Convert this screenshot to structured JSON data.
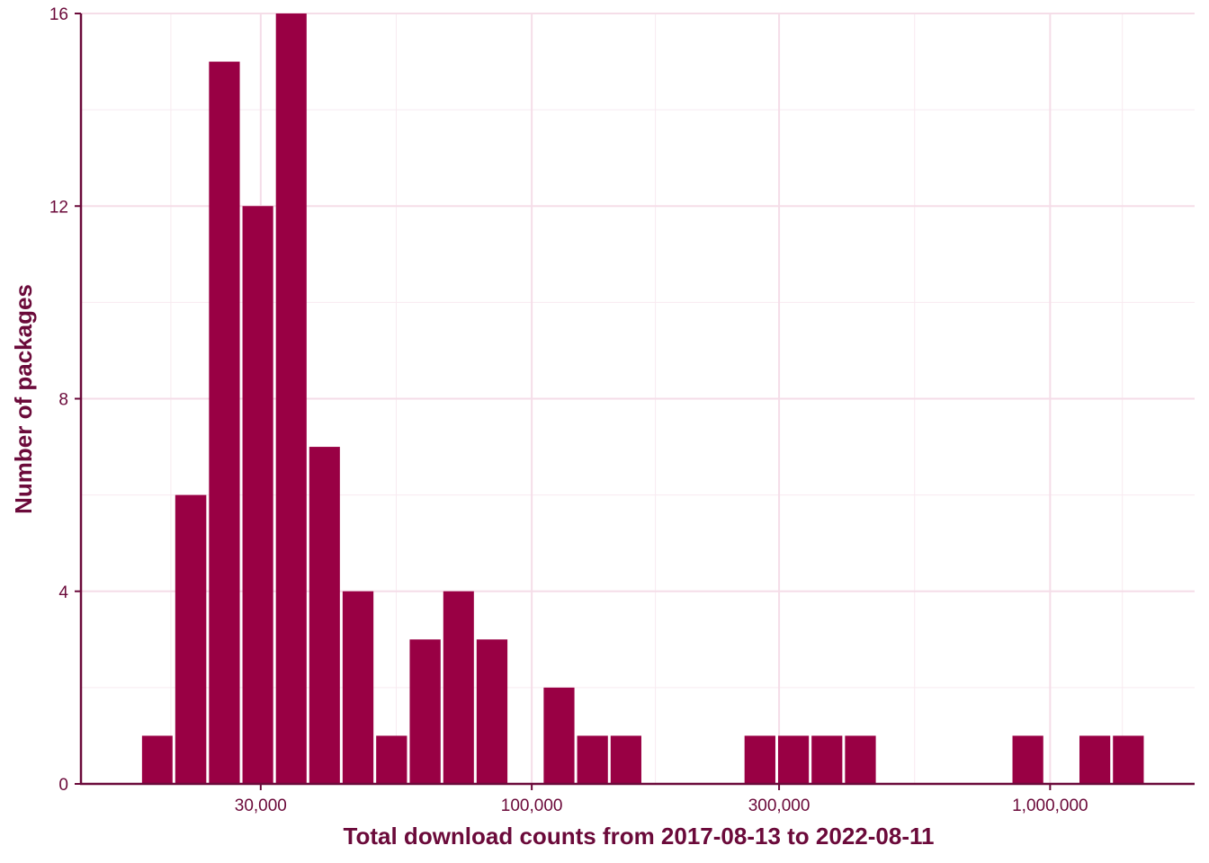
{
  "chart_data": {
    "type": "bar",
    "subtype": "histogram",
    "x_scale": "log10",
    "xlabel": "Total download counts from 2017-08-13 to 2022-08-11",
    "ylabel": "Number of packages",
    "xlim": [
      13500,
      1900000
    ],
    "ylim": [
      0,
      16
    ],
    "x_ticks": [
      {
        "value": 30000,
        "label": "30,000"
      },
      {
        "value": 100000,
        "label": "100,000"
      },
      {
        "value": 300000,
        "label": "300,000"
      },
      {
        "value": 1000000,
        "label": "1,000,000"
      }
    ],
    "y_ticks": [
      {
        "value": 0,
        "label": "0"
      },
      {
        "value": 4,
        "label": "4"
      },
      {
        "value": 8,
        "label": "8"
      },
      {
        "value": 12,
        "label": "12"
      },
      {
        "value": 16,
        "label": "16"
      }
    ],
    "bins": [
      {
        "x0": 17600,
        "x1": 20400,
        "count": 1
      },
      {
        "x0": 20400,
        "x1": 23700,
        "count": 6
      },
      {
        "x0": 23700,
        "x1": 27500,
        "count": 15
      },
      {
        "x0": 27500,
        "x1": 31900,
        "count": 12
      },
      {
        "x0": 31900,
        "x1": 37000,
        "count": 16
      },
      {
        "x0": 37000,
        "x1": 42900,
        "count": 7
      },
      {
        "x0": 42900,
        "x1": 49800,
        "count": 4
      },
      {
        "x0": 49800,
        "x1": 57800,
        "count": 1
      },
      {
        "x0": 57800,
        "x1": 67100,
        "count": 3
      },
      {
        "x0": 67100,
        "x1": 77800,
        "count": 4
      },
      {
        "x0": 77800,
        "x1": 90300,
        "count": 3
      },
      {
        "x0": 90300,
        "x1": 104800,
        "count": 0
      },
      {
        "x0": 104800,
        "x1": 121600,
        "count": 2
      },
      {
        "x0": 121600,
        "x1": 141100,
        "count": 1
      },
      {
        "x0": 141100,
        "x1": 163700,
        "count": 1
      },
      {
        "x0": 163700,
        "x1": 190000,
        "count": 0
      },
      {
        "x0": 190000,
        "x1": 220400,
        "count": 0
      },
      {
        "x0": 220400,
        "x1": 255800,
        "count": 0
      },
      {
        "x0": 255800,
        "x1": 296900,
        "count": 1
      },
      {
        "x0": 296900,
        "x1": 344500,
        "count": 1
      },
      {
        "x0": 344500,
        "x1": 399700,
        "count": 1
      },
      {
        "x0": 399700,
        "x1": 463800,
        "count": 1
      },
      {
        "x0": 463800,
        "x1": 538200,
        "count": 0
      },
      {
        "x0": 538200,
        "x1": 624500,
        "count": 0
      },
      {
        "x0": 624500,
        "x1": 724700,
        "count": 0
      },
      {
        "x0": 724700,
        "x1": 841000,
        "count": 0
      },
      {
        "x0": 841000,
        "x1": 975900,
        "count": 1
      },
      {
        "x0": 975900,
        "x1": 1132400,
        "count": 0
      },
      {
        "x0": 1132400,
        "x1": 1314100,
        "count": 1
      },
      {
        "x0": 1314100,
        "x1": 1524900,
        "count": 1
      }
    ],
    "grid": true,
    "legend": "none",
    "colors": {
      "bar": "#990044",
      "axis": "#6b0a3a",
      "grid_major": "#f5dde8",
      "grid_minor": "#f8eaf0"
    }
  }
}
